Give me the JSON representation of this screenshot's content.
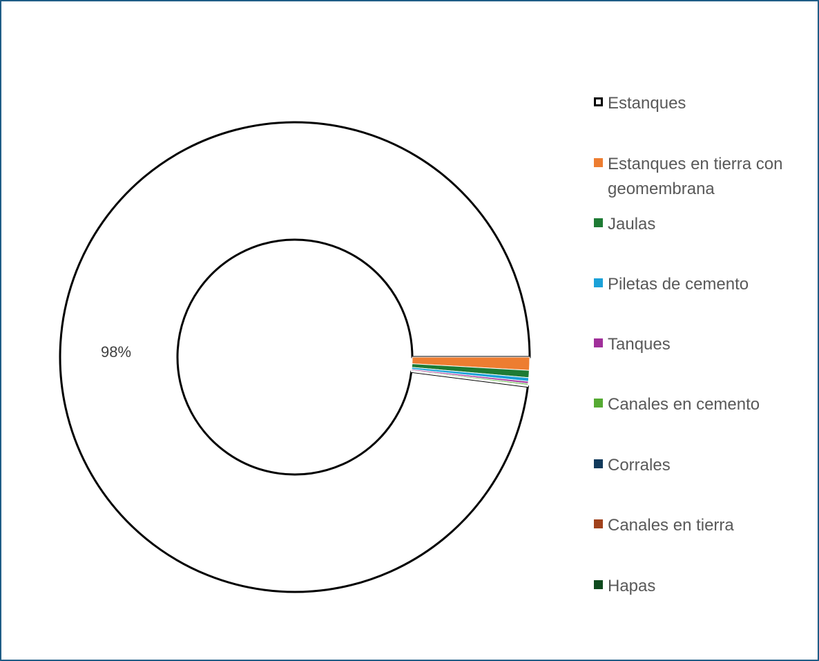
{
  "chart_data": {
    "type": "pie",
    "variant": "doughnut",
    "title": "",
    "legend_position": "right",
    "categories": [
      "Estanques",
      "Estanques en tierra con geomembrana",
      "Jaulas",
      "Piletas de cemento",
      "Tanques",
      "Canales en cemento",
      "Corrales",
      "Canales en tierra",
      "Hapas"
    ],
    "values": [
      98.0,
      0.9,
      0.5,
      0.25,
      0.15,
      0.1,
      0.05,
      0.03,
      0.02
    ],
    "colors": [
      "#ffffff",
      "#ed7d31",
      "#1e7b34",
      "#1ba1d8",
      "#a0309a",
      "#55aa33",
      "#123a5b",
      "#a0421c",
      "#0f4a1e"
    ],
    "data_labels": [
      {
        "category": "Estanques",
        "text": "98%"
      }
    ]
  }
}
